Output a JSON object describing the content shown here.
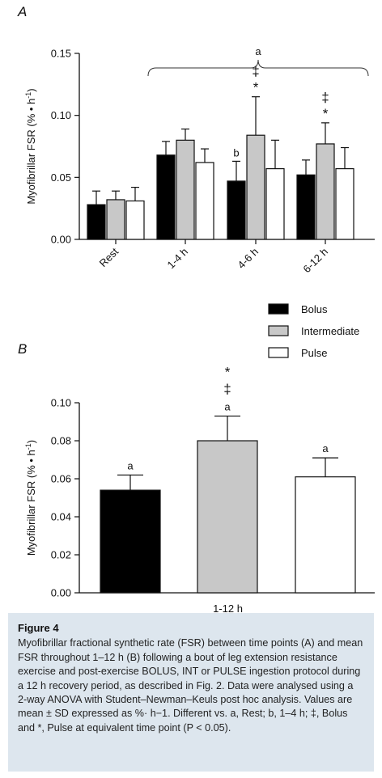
{
  "chart_data": [
    {
      "type": "bar",
      "panel": "A",
      "categories": [
        "Rest",
        "1-4 h",
        "4-6 h",
        "6-12 h"
      ],
      "ylabel_main": "Myofibrillar FSR (% • h",
      "ylabel_sup": "-1",
      "ylabel_close": ")",
      "ylim": [
        0,
        0.15
      ],
      "yticks": [
        0.0,
        0.05,
        0.1,
        0.15
      ],
      "ytick_labels": [
        "0.00",
        "0.05",
        "0.10",
        "0.15"
      ],
      "grid": false,
      "legend_position": "below-right",
      "series": [
        {
          "name": "Bolus",
          "color": "#000000",
          "values": [
            0.028,
            0.068,
            0.047,
            0.052
          ],
          "sd": [
            0.011,
            0.011,
            0.016,
            0.012
          ]
        },
        {
          "name": "Intermediate",
          "color": "#c8c8c8",
          "values": [
            0.032,
            0.08,
            0.084,
            0.077
          ],
          "sd": [
            0.007,
            0.009,
            0.031,
            0.017
          ]
        },
        {
          "name": "Pulse",
          "color": "#ffffff",
          "values": [
            0.031,
            0.062,
            0.057,
            0.057
          ],
          "sd": [
            0.011,
            0.011,
            0.023,
            0.017
          ]
        }
      ],
      "annotations": [
        {
          "category": 2,
          "series": 0,
          "label": "b"
        },
        {
          "category": 2,
          "series": 1,
          "label": "*"
        },
        {
          "category": 2,
          "series": 1,
          "label": "‡"
        },
        {
          "category": 3,
          "series": 1,
          "label": "*"
        },
        {
          "category": 3,
          "series": 1,
          "label": "‡"
        }
      ],
      "bracket_label": "a"
    },
    {
      "type": "bar",
      "panel": "B",
      "categories": [
        "1-12 h"
      ],
      "ylabel_main": "Myofibrillar FSR (% • h",
      "ylabel_sup": "-1",
      "ylabel_close": ")",
      "ylim": [
        0,
        0.1
      ],
      "yticks": [
        0.0,
        0.02,
        0.04,
        0.06,
        0.08,
        0.1
      ],
      "ytick_labels": [
        "0.00",
        "0.02",
        "0.04",
        "0.06",
        "0.08",
        "0.10"
      ],
      "grid": false,
      "series": [
        {
          "name": "Bolus",
          "color": "#000000",
          "values": [
            0.054
          ],
          "sd": [
            0.008
          ]
        },
        {
          "name": "Intermediate",
          "color": "#c8c8c8",
          "values": [
            0.08
          ],
          "sd": [
            0.013
          ]
        },
        {
          "name": "Pulse",
          "color": "#ffffff",
          "values": [
            0.061
          ],
          "sd": [
            0.01
          ]
        }
      ],
      "annotations": [
        {
          "series": 0,
          "labels": [
            "a"
          ]
        },
        {
          "series": 1,
          "labels": [
            "*",
            "‡",
            "a"
          ]
        },
        {
          "series": 2,
          "labels": [
            "a"
          ]
        }
      ]
    }
  ],
  "caption": {
    "title": "Figure 4",
    "text": "Myofibrillar fractional synthetic rate (FSR) between time points (A) and mean FSR throughout 1–12 h (B) following a bout of leg extension resistance exercise and post-exercise BOLUS, INT or PULSE ingestion protocol during a 12 h recovery period, as described in Fig. 2. Data were analysed using a 2-way ANOVA with Student–Newman–Keuls post hoc analysis. Values are mean ± SD expressed as %· h−1. Different vs. a, Rest; b, 1–4 h; ‡, Bolus and *, Pulse at equivalent time point (P < 0.05)."
  }
}
